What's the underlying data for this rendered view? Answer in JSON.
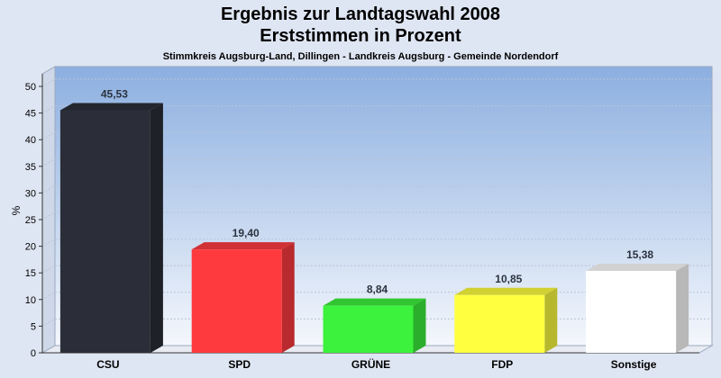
{
  "chart_data": {
    "type": "bar",
    "title": "Ergebnis zur Landtagswahl 2008",
    "subtitle": "Erststimmen in Prozent",
    "caption": "Stimmkreis Augsburg-Land, Dillingen - Landkreis Augsburg - Gemeinde Nordendorf",
    "ylabel": "%",
    "xlabel": "",
    "ylim": [
      0,
      50
    ],
    "yticks": [
      "0",
      "5",
      "10",
      "15",
      "20",
      "25",
      "30",
      "35",
      "40",
      "45",
      "50"
    ],
    "grid": true,
    "categories": [
      "CSU",
      "SPD",
      "GRÜNE",
      "FDP",
      "Sonstige"
    ],
    "values": [
      45.53,
      19.4,
      8.84,
      10.85,
      15.38
    ],
    "value_labels": [
      "45,53",
      "19,40",
      "8,84",
      "10,85",
      "15,38"
    ],
    "colors": [
      "#2b2e38",
      "#ff3a3f",
      "#3cf23c",
      "#ffff40",
      "#ffffff"
    ]
  }
}
